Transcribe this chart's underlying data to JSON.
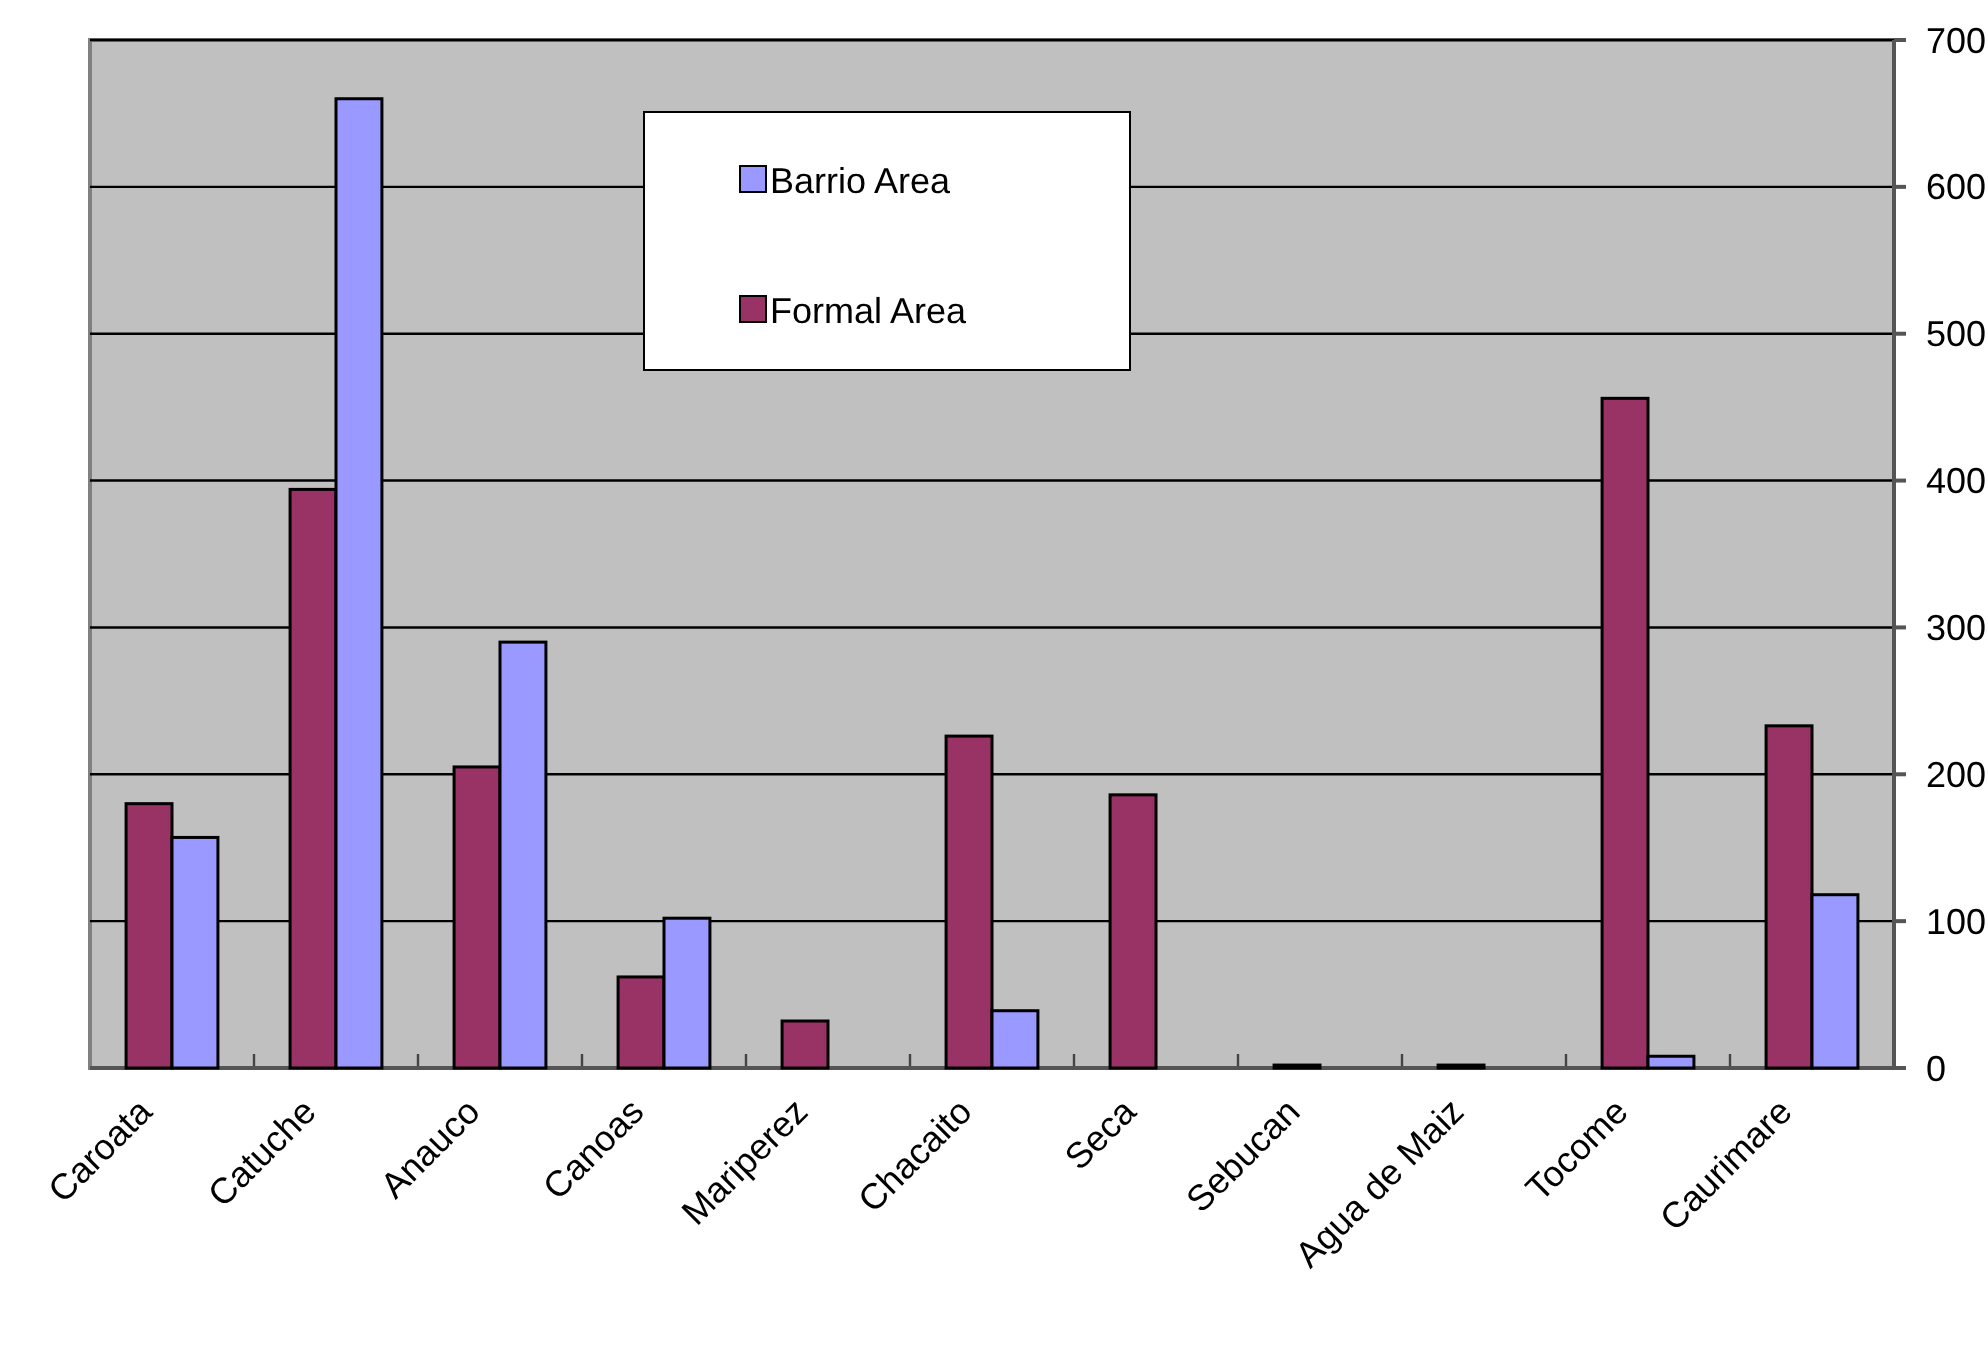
{
  "chart_data": {
    "type": "bar",
    "categories": [
      "Caroata",
      "Catuche",
      "Anauco",
      "Canoas",
      "Mariperez",
      "Chacaito",
      "Seca",
      "Sebucan",
      "Agua de Maiz",
      "Tocome",
      "Caurimare"
    ],
    "series": [
      {
        "name": "Formal Area",
        "color": "#993366",
        "values": [
          180,
          394,
          205,
          62,
          32,
          226,
          186,
          2,
          2,
          456,
          233
        ]
      },
      {
        "name": "Barrio Area",
        "color": "#9999ff",
        "values": [
          157,
          660,
          290,
          102,
          0,
          39,
          0,
          0,
          0,
          8,
          118
        ]
      }
    ],
    "ylim": [
      0,
      700
    ],
    "yticks": [
      0,
      100,
      200,
      300,
      400,
      500,
      600,
      700
    ],
    "grid": "y",
    "legend": "top"
  }
}
